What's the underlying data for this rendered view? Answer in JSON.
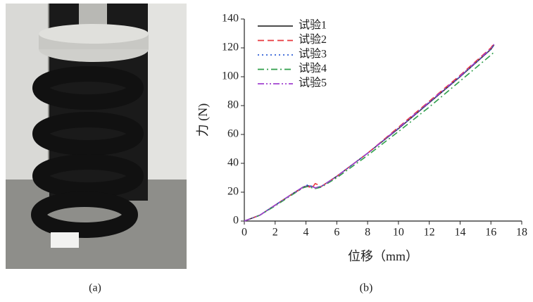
{
  "chart_data": {
    "type": "line",
    "x_label": "位移（mm）",
    "y_label": "力 (N)",
    "x": [
      0,
      1,
      2,
      3,
      3.8,
      4.1,
      4.4,
      4.6,
      5,
      6,
      8,
      10,
      12,
      14,
      16,
      16.2
    ],
    "series": [
      {
        "name": "试验1",
        "color": "#333333",
        "dash": "solid",
        "values": [
          0,
          4,
          11,
          18,
          23.5,
          24.5,
          24,
          23,
          24,
          31,
          47,
          64,
          82,
          100,
          119,
          122
        ]
      },
      {
        "name": "试验2",
        "color": "#e8383d",
        "dash": "dashed",
        "values": [
          0,
          4,
          11,
          18,
          23,
          24,
          23,
          26,
          24,
          31,
          47,
          65,
          83,
          101,
          120,
          123
        ]
      },
      {
        "name": "试验3",
        "color": "#3060d8",
        "dash": "dotted",
        "values": [
          0,
          4,
          11,
          18,
          23,
          25,
          24,
          23,
          24,
          31,
          47,
          64,
          82,
          100,
          119,
          122
        ]
      },
      {
        "name": "试验4",
        "color": "#2e9e4a",
        "dash": "dashdot",
        "values": [
          0,
          4,
          10.5,
          17.5,
          23,
          24,
          23,
          22.5,
          23.5,
          30,
          45.5,
          62,
          79,
          97,
          115,
          117
        ]
      },
      {
        "name": "试验5",
        "color": "#a040d0",
        "dash": "dashdotdot",
        "values": [
          0,
          4,
          11,
          18,
          23.5,
          24.5,
          24,
          23,
          24,
          31,
          47,
          64.5,
          82.5,
          100.5,
          119.5,
          122.5
        ]
      }
    ],
    "xlim": [
      0,
      18
    ],
    "xticks": [
      0,
      2,
      4,
      6,
      8,
      10,
      12,
      14,
      16,
      18
    ],
    "ylim": [
      0,
      140
    ],
    "yticks": [
      0,
      20,
      40,
      60,
      80,
      100,
      120,
      140
    ],
    "legend": "upper-left"
  },
  "figure": {
    "caption_a": "(a)",
    "caption_b": "(b)"
  }
}
